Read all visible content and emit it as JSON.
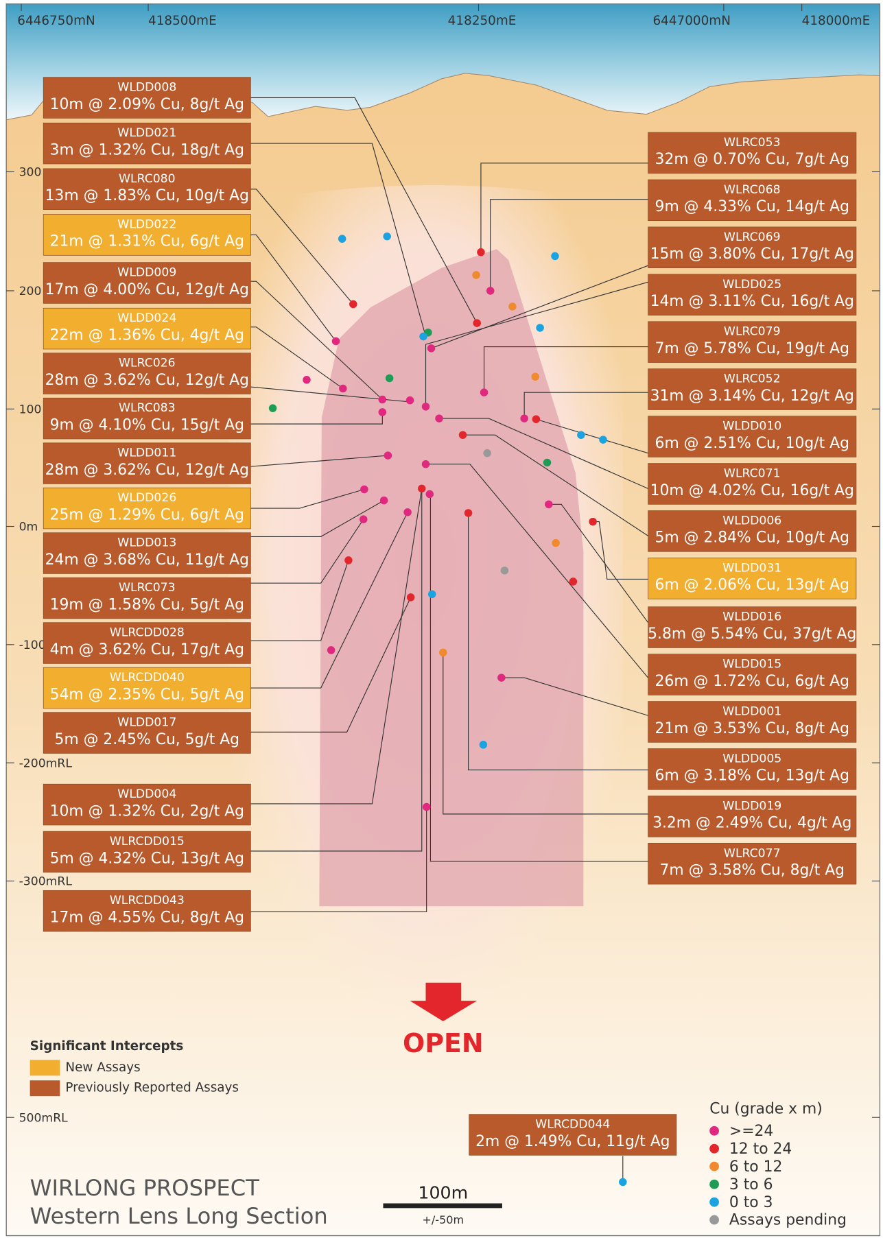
{
  "top_labels": [
    "6446750mN",
    "418500mE",
    "418250mE",
    "6447000mN",
    "418000mE"
  ],
  "rl_labels": [
    "300",
    "200",
    "100",
    "0m",
    "-100",
    "-200mRL",
    "-300mRL",
    "500mRL"
  ],
  "intercepts_left": [
    {
      "hole": "WLDD008",
      "result": "10m @ 2.09% Cu, 8g/t Ag",
      "new": false
    },
    {
      "hole": "WLDD021",
      "result": "3m @ 1.32% Cu, 18g/t Ag",
      "new": false
    },
    {
      "hole": "WLRC080",
      "result": "13m @ 1.83% Cu, 10g/t Ag",
      "new": false
    },
    {
      "hole": "WLDD022",
      "result": "21m @ 1.31% Cu, 6g/t Ag",
      "new": true
    },
    {
      "hole": "WLDD009",
      "result": "17m @ 4.00% Cu, 12g/t Ag",
      "new": false
    },
    {
      "hole": "WLDD024",
      "result": "22m @ 1.36% Cu, 4g/t Ag",
      "new": true
    },
    {
      "hole": "WLRC026",
      "result": "28m @ 3.62% Cu, 12g/t Ag",
      "new": false
    },
    {
      "hole": "WLRC083",
      "result": "9m @ 4.10% Cu, 15g/t Ag",
      "new": false
    },
    {
      "hole": "WLDD011",
      "result": "28m @ 3.62% Cu, 12g/t Ag",
      "new": false
    },
    {
      "hole": "WLDD026",
      "result": "25m @ 1.29% Cu, 6g/t Ag",
      "new": true
    },
    {
      "hole": "WLDD013",
      "result": "24m @ 3.68% Cu, 11g/t Ag",
      "new": false
    },
    {
      "hole": "WLRC073",
      "result": "19m @ 1.58% Cu, 5g/t Ag",
      "new": false
    },
    {
      "hole": "WLRCDD028",
      "result": "4m @ 3.62% Cu, 17g/t Ag",
      "new": false
    },
    {
      "hole": "WLRCDD040",
      "result": "54m @ 2.35% Cu, 5g/t Ag",
      "new": true
    },
    {
      "hole": "WLDD017",
      "result": "5m @ 2.45% Cu, 5g/t Ag",
      "new": false
    },
    {
      "hole": "WLDD004",
      "result": "10m @ 1.32% Cu, 2g/t Ag",
      "new": false
    },
    {
      "hole": "WLRCDD015",
      "result": "5m @ 4.32% Cu, 13g/t Ag",
      "new": false
    },
    {
      "hole": "WLRCDD043",
      "result": "17m @ 4.55% Cu, 8g/t Ag",
      "new": false
    }
  ],
  "intercepts_right": [
    {
      "hole": "WLRC053",
      "result": "32m @ 0.70% Cu, 7g/t Ag",
      "new": false
    },
    {
      "hole": "WLRC068",
      "result": "9m @ 4.33% Cu, 14g/t Ag",
      "new": false
    },
    {
      "hole": "WLRC069",
      "result": "15m @ 3.80% Cu, 17g/t Ag",
      "new": false
    },
    {
      "hole": "WLDD025",
      "result": "14m @ 3.11% Cu, 16g/t Ag",
      "new": false
    },
    {
      "hole": "WLRC079",
      "result": "7m @ 5.78% Cu, 19g/t Ag",
      "new": false
    },
    {
      "hole": "WLRC052",
      "result": "31m @ 3.14% Cu, 12g/t Ag",
      "new": false
    },
    {
      "hole": "WLDD010",
      "result": "6m @ 2.51% Cu, 10g/t Ag",
      "new": false
    },
    {
      "hole": "WLRC071",
      "result": "10m @ 4.02% Cu, 16g/t Ag",
      "new": false
    },
    {
      "hole": "WLDD006",
      "result": "5m @ 2.84% Cu, 10g/t Ag",
      "new": false
    },
    {
      "hole": "WLDD031",
      "result": "6m @ 2.06% Cu, 13g/t Ag",
      "new": true
    },
    {
      "hole": "WLDD016",
      "result": "5.8m @ 5.54% Cu, 37g/t Ag",
      "new": false
    },
    {
      "hole": "WLDD015",
      "result": "26m @ 1.72% Cu, 6g/t Ag",
      "new": false
    },
    {
      "hole": "WLDD001",
      "result": "21m @ 3.53% Cu, 8g/t Ag",
      "new": false
    },
    {
      "hole": "WLDD005",
      "result": "6m @ 3.18% Cu, 13g/t Ag",
      "new": false
    },
    {
      "hole": "WLDD019",
      "result": "3.2m @ 2.49% Cu, 4g/t Ag",
      "new": false
    },
    {
      "hole": "WLRC077",
      "result": "7m @ 3.58% Cu, 8g/t Ag",
      "new": false
    }
  ],
  "intercept_bottom": {
    "hole": "WLRCDD044",
    "result": "2m @ 1.49% Cu, 11g/t Ag",
    "new": false
  },
  "open_label": "OPEN",
  "intercept_legend": {
    "title": "Significant Intercepts",
    "items": [
      {
        "label": "New Assays",
        "color": "#f2ae2f"
      },
      {
        "label": "Previously Reported Assays",
        "color": "#b85a2b"
      }
    ]
  },
  "cu_legend": {
    "title": "Cu (grade x m)",
    "items": [
      {
        "label": ">=24",
        "color": "#e0287e"
      },
      {
        "label": "12 to 24",
        "color": "#e3262b"
      },
      {
        "label": "6 to 12",
        "color": "#ef8a2e"
      },
      {
        "label": "3 to 6",
        "color": "#1e9c55"
      },
      {
        "label": "0 to 3",
        "color": "#1aa3e0"
      },
      {
        "label": "Assays pending",
        "color": "#999999"
      }
    ]
  },
  "title": {
    "line1": "WIRLONG PROSPECT",
    "line2": "Western Lens Long Section"
  },
  "scale_bar": {
    "label": "100m",
    "note": "+/-50m"
  }
}
